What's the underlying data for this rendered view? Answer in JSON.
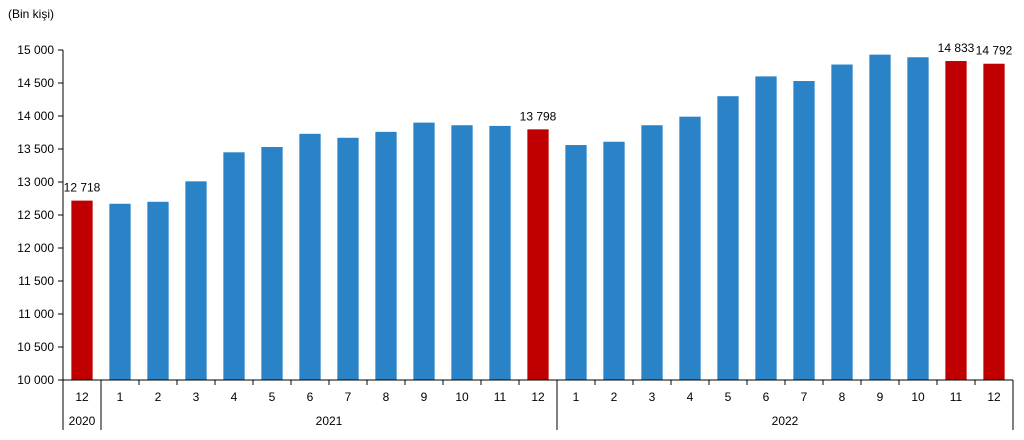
{
  "chart_data": {
    "type": "bar",
    "unit_label": "(Bin kişi)",
    "categories": [
      "12",
      "1",
      "2",
      "3",
      "4",
      "5",
      "6",
      "7",
      "8",
      "9",
      "10",
      "11",
      "12",
      "1",
      "2",
      "3",
      "4",
      "5",
      "6",
      "7",
      "8",
      "9",
      "10",
      "11",
      "12"
    ],
    "years": [
      {
        "label": "2020",
        "start": 0,
        "end": 0
      },
      {
        "label": "2021",
        "start": 1,
        "end": 12
      },
      {
        "label": "2022",
        "start": 13,
        "end": 24
      }
    ],
    "values": [
      12718,
      12670,
      12700,
      13010,
      13450,
      13530,
      13730,
      13670,
      13760,
      13900,
      13860,
      13850,
      13798,
      13560,
      13610,
      13860,
      13990,
      14300,
      14600,
      14530,
      14780,
      14930,
      14890,
      14833,
      14792
    ],
    "highlighted": [
      0,
      12,
      23,
      24
    ],
    "data_labels": [
      {
        "index": 0,
        "text": "12 718"
      },
      {
        "index": 12,
        "text": "13 798"
      },
      {
        "index": 23,
        "text": "14 833"
      },
      {
        "index": 24,
        "text": "14 792"
      }
    ],
    "ylim": [
      10000,
      15000
    ],
    "yticks": [
      10000,
      10500,
      11000,
      11500,
      12000,
      12500,
      13000,
      13500,
      14000,
      14500,
      15000
    ],
    "ytick_labels": [
      "10 000",
      "10 500",
      "11 000",
      "11 500",
      "12 000",
      "12 500",
      "13 000",
      "13 500",
      "14 000",
      "14 500",
      "15 000"
    ],
    "colors": {
      "bar": "#2a83c6",
      "highlight": "#c00000"
    },
    "grid": false,
    "legend": "none"
  }
}
